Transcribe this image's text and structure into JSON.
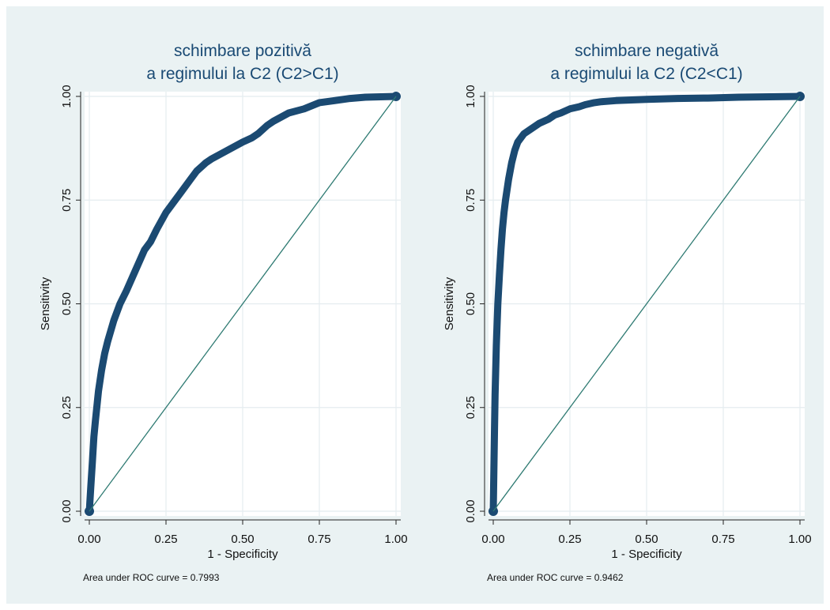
{
  "colors": {
    "background": "#eaf2f3",
    "plot_area": "#ffffff",
    "grid": "#e4ecef",
    "curve": "#1b4a72",
    "reference_line": "#2e7a72",
    "title": "#1a4a74"
  },
  "chart_data": [
    {
      "type": "line",
      "title_lines": [
        "schimbare pozitivă",
        "a regimului la C2 (C2>C1)"
      ],
      "xlabel": "1 - Specificity",
      "ylabel": "Sensitivity",
      "note": "Area under ROC curve = 0.7993",
      "xlim": [
        0,
        1
      ],
      "ylim": [
        0,
        1
      ],
      "xticks": [
        "0.00",
        "0.25",
        "0.50",
        "0.75",
        "1.00"
      ],
      "yticks": [
        "0.00",
        "0.25",
        "0.50",
        "0.75",
        "1.00"
      ],
      "grid": true,
      "series": [
        {
          "role": "roc",
          "x": [
            0,
            0.005,
            0.01,
            0.015,
            0.02,
            0.03,
            0.04,
            0.05,
            0.06,
            0.08,
            0.1,
            0.12,
            0.15,
            0.18,
            0.2,
            0.22,
            0.25,
            0.28,
            0.3,
            0.33,
            0.35,
            0.38,
            0.4,
            0.45,
            0.5,
            0.53,
            0.55,
            0.58,
            0.6,
            0.65,
            0.7,
            0.75,
            0.8,
            0.85,
            0.9,
            0.95,
            1.0
          ],
          "y": [
            0,
            0.06,
            0.12,
            0.18,
            0.22,
            0.29,
            0.34,
            0.38,
            0.41,
            0.46,
            0.5,
            0.53,
            0.58,
            0.63,
            0.65,
            0.68,
            0.72,
            0.75,
            0.77,
            0.8,
            0.82,
            0.84,
            0.85,
            0.87,
            0.89,
            0.9,
            0.91,
            0.93,
            0.94,
            0.96,
            0.97,
            0.985,
            0.99,
            0.995,
            0.998,
            0.999,
            1.0
          ]
        },
        {
          "role": "reference",
          "x": [
            0,
            1
          ],
          "y": [
            0,
            1
          ]
        }
      ]
    },
    {
      "type": "line",
      "title_lines": [
        "schimbare negativă",
        "a regimului la C2 (C2<C1)"
      ],
      "xlabel": "1 - Specificity",
      "ylabel": "Sensitivity",
      "note": "Area under ROC curve = 0.9462",
      "xlim": [
        0,
        1
      ],
      "ylim": [
        0,
        1
      ],
      "xticks": [
        "0.00",
        "0.25",
        "0.50",
        "0.75",
        "1.00"
      ],
      "yticks": [
        "0.00",
        "0.25",
        "0.50",
        "0.75",
        "1.00"
      ],
      "grid": true,
      "series": [
        {
          "role": "roc",
          "x": [
            0,
            0.002,
            0.004,
            0.006,
            0.008,
            0.01,
            0.015,
            0.02,
            0.025,
            0.03,
            0.035,
            0.04,
            0.05,
            0.06,
            0.07,
            0.08,
            0.1,
            0.12,
            0.15,
            0.18,
            0.2,
            0.22,
            0.25,
            0.28,
            0.3,
            0.33,
            0.35,
            0.4,
            0.5,
            0.6,
            0.7,
            0.8,
            0.9,
            1.0
          ],
          "y": [
            0,
            0.1,
            0.2,
            0.28,
            0.34,
            0.4,
            0.5,
            0.57,
            0.63,
            0.68,
            0.72,
            0.75,
            0.8,
            0.84,
            0.87,
            0.89,
            0.91,
            0.92,
            0.935,
            0.945,
            0.955,
            0.96,
            0.97,
            0.975,
            0.98,
            0.985,
            0.987,
            0.99,
            0.993,
            0.995,
            0.996,
            0.998,
            0.999,
            1.0
          ]
        },
        {
          "role": "reference",
          "x": [
            0,
            1
          ],
          "y": [
            0,
            1
          ]
        }
      ]
    }
  ]
}
